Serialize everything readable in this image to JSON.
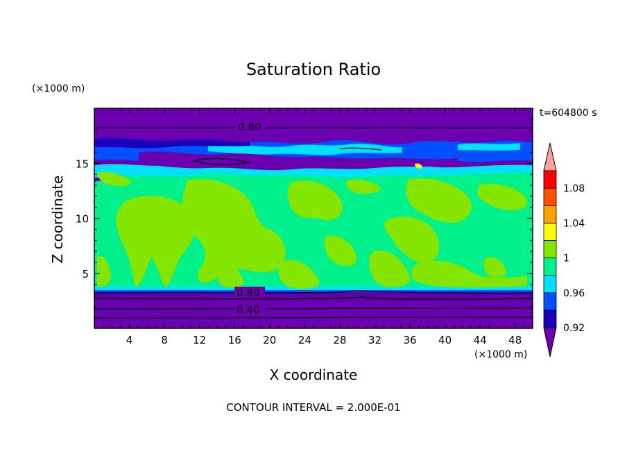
{
  "chart_data": {
    "type": "heatmap",
    "title": "Saturation Ratio",
    "xlabel": "X coordinate",
    "ylabel": "Z coordinate",
    "x_unit": "(×1000 m)",
    "y_unit": "(×1000 m)",
    "xlim": [
      0,
      50
    ],
    "ylim": [
      0,
      20
    ],
    "x_ticks": [
      4,
      8,
      12,
      16,
      20,
      24,
      28,
      32,
      36,
      40,
      44,
      48
    ],
    "y_ticks": [
      5,
      10,
      15
    ],
    "time_label": "t=604800 s",
    "footer": "CONTOUR INTERVAL = 2.000E-01",
    "contour_labels": [
      "0.80",
      "0.80",
      "0.40"
    ],
    "colorbar": {
      "levels": [
        0.92,
        0.94,
        0.96,
        0.98,
        1.0,
        1.02,
        1.04,
        1.06,
        1.08,
        1.1
      ],
      "labels": [
        "0.92",
        "0.96",
        "1",
        "1.04",
        "1.08"
      ],
      "colors": [
        "#6a00b0",
        "#1a00b8",
        "#0050ff",
        "#00e0ff",
        "#00f08c",
        "#84e600",
        "#ffff00",
        "#ffa000",
        "#ff5000",
        "#ff0000",
        "#ffa0a0"
      ]
    },
    "bands": [
      {
        "z": [
          0.3,
          3.0
        ],
        "value": "below 0.92"
      },
      {
        "z": [
          3.0,
          4.2
        ],
        "value": "0.80 to 0.92"
      },
      {
        "z": [
          4.2,
          15.0
        ],
        "value": "1.00 to 1.02 with patches 1.02 to 1.04"
      },
      {
        "z": [
          15.0,
          17.5
        ],
        "value": "0.92 to 0.98 mixed"
      },
      {
        "z": [
          17.5,
          19.8
        ],
        "value": "below 0.92"
      }
    ]
  }
}
